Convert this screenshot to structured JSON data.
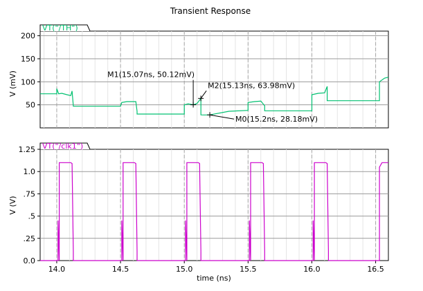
{
  "title": "Transient Response",
  "chart_data": [
    {
      "type": "line",
      "legend": "VT(\"/TH\")",
      "ylabel": "V (mV)",
      "xlim": [
        13.87,
        16.6
      ],
      "ylim": [
        0,
        210
      ],
      "yticks": [
        "50",
        "100",
        "150",
        "200"
      ],
      "series": [
        {
          "name": "VT(\"/TH\")",
          "color": "#00c070",
          "x": [
            13.87,
            14.0,
            14.0,
            14.015,
            14.04,
            14.08,
            14.11,
            14.12,
            14.13,
            14.13,
            14.5,
            14.51,
            14.55,
            14.62,
            14.63,
            14.63,
            15.0,
            15.0,
            15.03,
            15.07,
            15.1,
            15.13,
            15.13,
            15.16,
            15.2,
            15.35,
            15.5,
            15.5,
            15.55,
            15.6,
            15.63,
            15.63,
            16.0,
            16.0,
            16.05,
            16.1,
            16.12,
            16.12,
            16.53,
            16.53,
            16.57,
            16.6
          ],
          "y": [
            74,
            74,
            85,
            74,
            75,
            72,
            70,
            80,
            48,
            47,
            47,
            55,
            57,
            57,
            36,
            30,
            30,
            50,
            52,
            50.12,
            53,
            63.98,
            28.18,
            28,
            28.18,
            36,
            38,
            55,
            57,
            58,
            48,
            37,
            37,
            72,
            75,
            76,
            90,
            59,
            59,
            100,
            108,
            110
          ]
        }
      ],
      "markers": [
        {
          "label": "M1(15.07ns, 50.12mV)",
          "x": 15.07,
          "y": 50.12
        },
        {
          "label": "M2(15.13ns, 63.98mV)",
          "x": 15.13,
          "y": 63.98
        },
        {
          "label": "M0(15.2ns, 28.18mV)",
          "x": 15.2,
          "y": 28.18
        }
      ]
    },
    {
      "type": "line",
      "legend": "VT(\"/clk1\")",
      "ylabel": "V (V)",
      "xlabel": "time (ns)",
      "xlim": [
        13.87,
        16.6
      ],
      "ylim": [
        0,
        1.25
      ],
      "yticks": [
        "0.0",
        ".25",
        ".5",
        ".75",
        "1.0",
        "1.25"
      ],
      "xticks": [
        "14.0",
        "14.5",
        "15.0",
        "15.5",
        "16.0",
        "16.5"
      ],
      "series": [
        {
          "name": "VT(\"/clk1\")",
          "color": "#cc00cc",
          "x": [
            13.87,
            14.01,
            14.01,
            14.02,
            14.02,
            14.11,
            14.12,
            14.13,
            14.13,
            14.51,
            14.51,
            14.52,
            14.52,
            14.61,
            14.62,
            14.63,
            14.63,
            15.01,
            15.01,
            15.02,
            15.02,
            15.11,
            15.12,
            15.13,
            15.13,
            15.51,
            15.51,
            15.52,
            15.52,
            15.61,
            15.62,
            15.63,
            15.63,
            16.01,
            16.01,
            16.02,
            16.02,
            16.11,
            16.12,
            16.13,
            16.13,
            16.53,
            16.53,
            16.55,
            16.6
          ],
          "y": [
            0,
            0,
            0.45,
            0.0,
            1.1,
            1.1,
            1.09,
            0.1,
            0.0,
            0,
            0.45,
            0.0,
            1.1,
            1.1,
            1.09,
            0.1,
            0.0,
            0,
            0.45,
            0.0,
            1.1,
            1.1,
            1.09,
            0.1,
            0.0,
            0,
            0.45,
            0.0,
            1.1,
            1.1,
            1.09,
            0.1,
            0.0,
            0,
            0.45,
            0.0,
            1.1,
            1.1,
            1.09,
            0.1,
            0.0,
            0.0,
            1.05,
            1.1,
            1.1
          ]
        }
      ]
    }
  ]
}
